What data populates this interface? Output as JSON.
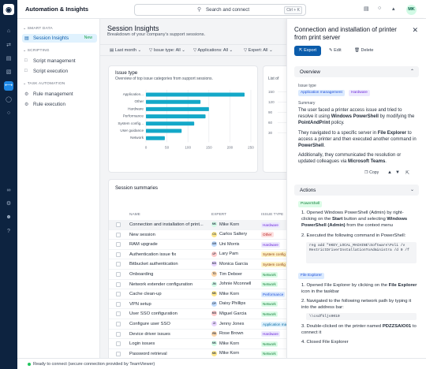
{
  "app": {
    "title": "Automation & Insights"
  },
  "search": {
    "placeholder": "Search and connect",
    "shortcut": "Ctrl + K"
  },
  "user": {
    "initials": "MK"
  },
  "sidebar": {
    "sections": [
      {
        "label": "SMART DATA",
        "items": [
          {
            "label": "Session Insights",
            "badge": "New",
            "active": true
          }
        ]
      },
      {
        "label": "SCRIPTING",
        "items": [
          {
            "label": "Script management"
          },
          {
            "label": "Script execution"
          }
        ]
      },
      {
        "label": "TASK AUTOMATION",
        "items": [
          {
            "label": "Rule management"
          },
          {
            "label": "Rule execution"
          }
        ]
      }
    ]
  },
  "page": {
    "title": "Session Insights",
    "subtitle": "Breakdown of your company's support sessions."
  },
  "filters": [
    {
      "label": "Last month"
    },
    {
      "label": "Issue type: All"
    },
    {
      "label": "Applications: All"
    },
    {
      "label": "Expert: All"
    }
  ],
  "issue_card": {
    "title": "Issue type",
    "subtitle": "Overview of top issue categories from support sessions.",
    "second_subtitle": "List of"
  },
  "chart_data": {
    "type": "bar",
    "orientation": "horizontal",
    "title": "Issue type",
    "categories": [
      "Application...",
      "Other",
      "Hardware",
      "Performance",
      "System config...",
      "User guidance",
      "Network"
    ],
    "values": [
      235,
      130,
      150,
      142,
      115,
      85,
      45
    ],
    "xlim": [
      0,
      250
    ],
    "xticks": [
      "0",
      "50",
      "100",
      "150",
      "200",
      "250"
    ],
    "grid": true,
    "second_chart_yticks": [
      "150",
      "120",
      "90",
      "60",
      "30"
    ]
  },
  "sessions": {
    "title": "Session summaries",
    "headers": {
      "name": "NAME",
      "expert": "EXPERT",
      "issue": "ISSUE TYPE"
    },
    "rows": [
      {
        "name": "Connection and installation of print...",
        "expert": "Mike Korn",
        "initials": "MK",
        "issue": "Hardware",
        "selected": true
      },
      {
        "name": "New session",
        "expert": "Carlos Saltery",
        "initials": "CS",
        "issue": "Other"
      },
      {
        "name": "RAM upgrade",
        "expert": "Uni Morris",
        "initials": "UM",
        "issue": "Hardware"
      },
      {
        "name": "Authentication issue fix",
        "expert": "Lary Pam",
        "initials": "LP",
        "issue": "System config"
      },
      {
        "name": "Bitbucket authentication",
        "expert": "Monica Garcia",
        "initials": "MG",
        "issue": "System config"
      },
      {
        "name": "Onboarding",
        "expert": "Tim Deboer",
        "initials": "TD",
        "issue": "Network"
      },
      {
        "name": "Network extender configuration",
        "expert": "Johnie Mconnell",
        "initials": "JM",
        "issue": "Network"
      },
      {
        "name": "Cache clean-up",
        "expert": "Mike Korn",
        "initials": "MK",
        "issue": "Performance"
      },
      {
        "name": "VPN setup",
        "expert": "Daisy Phillips",
        "initials": "DP",
        "issue": "Network"
      },
      {
        "name": "User SSO configuration",
        "expert": "Miguel Garcia",
        "initials": "MG",
        "issue": "Network"
      },
      {
        "name": "Configure user SSO",
        "expert": "Jenny Jones",
        "initials": "JJ",
        "issue": "Application ma..."
      },
      {
        "name": "Device driver issues",
        "expert": "Rose Brown",
        "initials": "RB",
        "issue": "Hardware"
      },
      {
        "name": "Login issues",
        "expert": "Mike Korn",
        "initials": "MK",
        "issue": "Network"
      },
      {
        "name": "Password retrieval",
        "expert": "Mike Korn",
        "initials": "MK",
        "issue": "Network"
      }
    ]
  },
  "panel": {
    "title": "Connection and installation of printer from print server",
    "actions": {
      "export": "Export",
      "edit": "Edit",
      "delete": "Delete"
    },
    "overview": {
      "label": "Overview",
      "issue_type_label": "Issue type",
      "tags": [
        "Application management",
        "Hardware"
      ],
      "summary_label": "Summary",
      "summary_p1": "The user faced a printer access issue and tried to resolve it using Windows PowerShell by modifying the PointAndPrint policy.",
      "summary_p2": "They navigated to a specific server in File Explorer to access a printer and then executed another command in PowerShell.",
      "summary_p3": "Additionally, they communicated the resolution or updated colleagues via Microsoft Teams.",
      "copy_label": "Copy"
    },
    "actions_section": {
      "label": "Actions",
      "groups": [
        {
          "tag": "PowerShell",
          "steps": [
            "Opened Windows PowerShell (Admin) by right-clicking on the Start button and selecting Windows PowerShell (Admin) from the context menu",
            "Executed the following command in PowerShell:"
          ],
          "code": "reg add \"HKEY_LOCAL_MACHINE\\Software\\Poli /v RestrictDriverInstallationToAdministra /d 0 /f"
        },
        {
          "tag": "File Explorer",
          "steps": [
            "Opened File Explorer by clicking on the File Explorer icon in the taskbar",
            "Navigated to the following network path by typing it into the address bar:"
          ],
          "code": "\\\\csdfkljs0010",
          "steps_after": [
            "Double-clicked on the printer named PDZZSAIO01 to connect it",
            "Closed File Explorer"
          ]
        }
      ]
    }
  },
  "status": {
    "text": "Ready to connect (secure connection provided by TeamViewer)"
  },
  "colors": {
    "accent": "#0b5cab",
    "rail": "#0d2340",
    "bar": "#14a8c8",
    "status_ok": "#22c55e"
  }
}
